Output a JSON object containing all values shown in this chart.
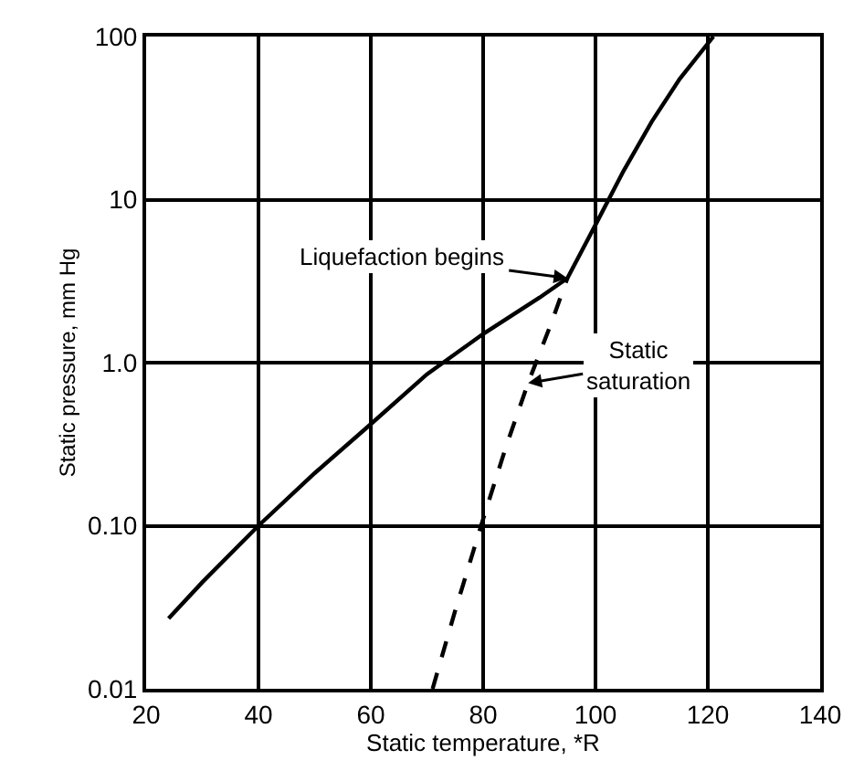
{
  "chart_data": {
    "type": "line",
    "xlabel": "Static temperature, *R",
    "ylabel": "Static pressure, mm Hg",
    "log": "y",
    "grid": true,
    "marker": "none",
    "xlim": [
      20,
      140
    ],
    "xticks": [
      20,
      40,
      60,
      80,
      100,
      120,
      140
    ],
    "ylim": [
      0.01,
      100
    ],
    "yticks": [
      {
        "value": 0.01,
        "label": "0.01"
      },
      {
        "value": 0.1,
        "label": "0.10"
      },
      {
        "value": 1,
        "label": "1.0"
      },
      10,
      100
    ],
    "series": [
      {
        "color": "#000000",
        "line_style": "solid",
        "x": [
          24,
          30,
          40,
          50,
          60,
          70,
          80,
          90,
          95,
          100,
          105,
          110,
          115,
          121
        ],
        "values": [
          0.027,
          0.045,
          0.1,
          0.21,
          0.42,
          0.85,
          1.5,
          2.5,
          3.3,
          7,
          15,
          30,
          55,
          100
        ]
      },
      {
        "color": "#000000",
        "line_style": "dashed",
        "x": [
          71,
          75,
          80,
          84,
          88,
          92,
          95
        ],
        "values": [
          0.01,
          0.03,
          0.11,
          0.3,
          0.75,
          1.7,
          3.3
        ]
      }
    ],
    "annotations": [
      {
        "text": "Liquefaction begins",
        "x": 95,
        "y": 3.3
      },
      {
        "text": "Static\nsaturation",
        "x": 88,
        "y": 0.75
      }
    ]
  }
}
